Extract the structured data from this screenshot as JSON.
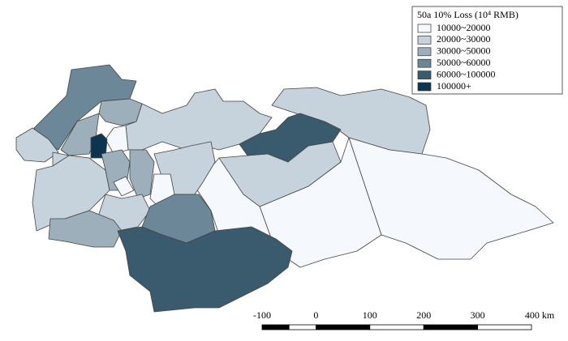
{
  "legend": {
    "title": "50a 10% Loss (10⁴ RMB)",
    "items": [
      {
        "label": "10000~20000",
        "color": "#f5f8fc"
      },
      {
        "label": "20000~30000",
        "color": "#c7d3dc"
      },
      {
        "label": "30000~50000",
        "color": "#9cafbb"
      },
      {
        "label": "50000~60000",
        "color": "#6b8798"
      },
      {
        "label": "60000~100000",
        "color": "#3a5a6d"
      },
      {
        "label": "100000+",
        "color": "#0d3550"
      }
    ]
  },
  "scale_bar": {
    "labels": [
      "-100",
      "0",
      "100",
      "200",
      "300",
      "400 km"
    ]
  }
}
